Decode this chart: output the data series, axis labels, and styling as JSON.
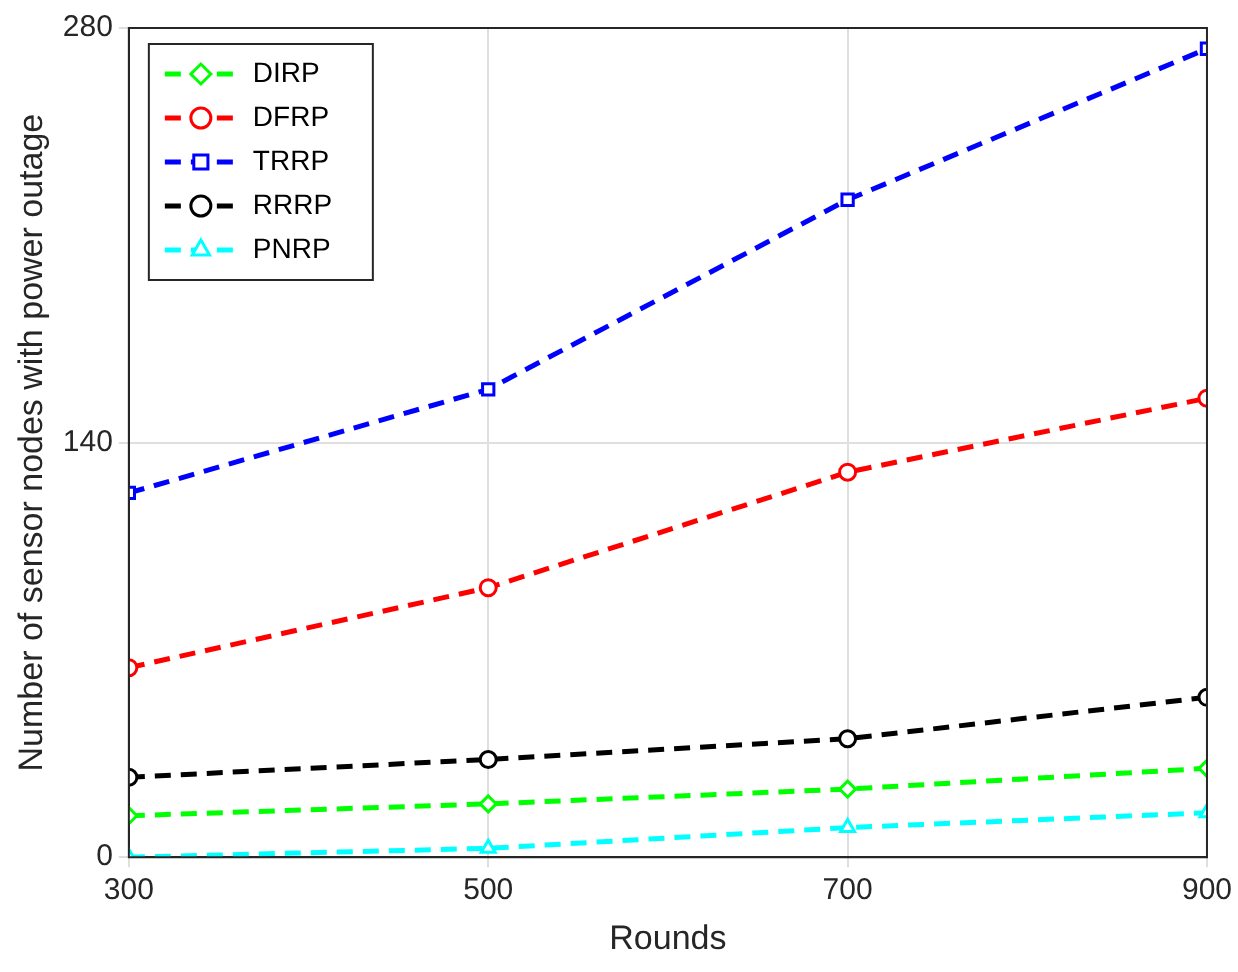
{
  "chart_data": {
    "type": "line",
    "xlabel": "Rounds",
    "ylabel": "Number of sensor nodes with power outage",
    "x": [
      300,
      500,
      700,
      900
    ],
    "series": [
      {
        "name": "DIRP",
        "color": "#00ff00",
        "marker": "diamond",
        "values": [
          14,
          18,
          23,
          30
        ]
      },
      {
        "name": "DFRP",
        "color": "#ff0000",
        "marker": "circle",
        "values": [
          64,
          91,
          130,
          155
        ]
      },
      {
        "name": "TRRP",
        "color": "#0000ff",
        "marker": "square",
        "values": [
          123,
          158,
          222,
          273
        ]
      },
      {
        "name": "RRRP",
        "color": "#000000",
        "marker": "circle",
        "values": [
          27,
          33,
          40,
          54
        ]
      },
      {
        "name": "PNRP",
        "color": "#00ffff",
        "marker": "triangle",
        "values": [
          0,
          3,
          10,
          15
        ]
      }
    ],
    "xlim": [
      300,
      900
    ],
    "xticks": [
      300,
      500,
      700,
      900
    ],
    "ylim": [
      0,
      280
    ],
    "yticks": [
      0,
      140,
      280
    ],
    "grid": true,
    "legend": "top left",
    "line_style": "dashed"
  }
}
